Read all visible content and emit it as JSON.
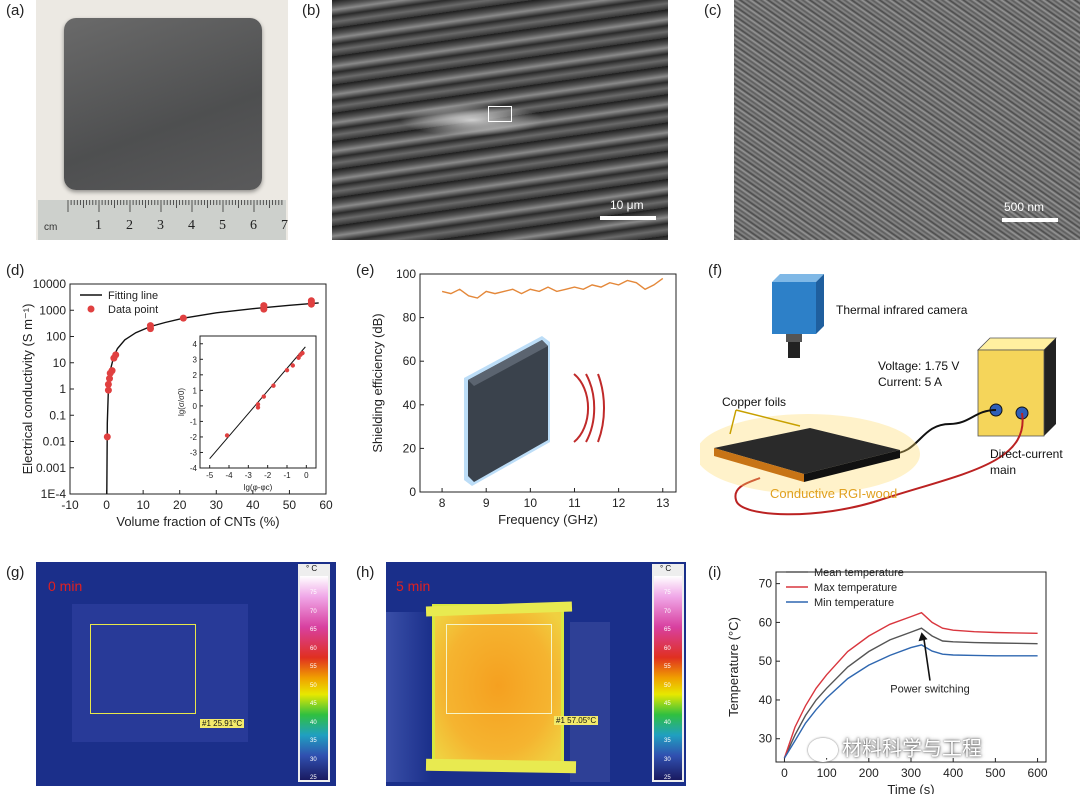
{
  "panels": {
    "a": {
      "label": "(a)",
      "ruler_unit": "cm",
      "ruler_numbers": [
        "1",
        "2",
        "3",
        "4",
        "5",
        "6",
        "7"
      ]
    },
    "b": {
      "label": "(b)",
      "scale_bar": "10 μm"
    },
    "c": {
      "label": "(c)",
      "scale_bar": "500 nm"
    },
    "d": {
      "label": "(d)"
    },
    "e": {
      "label": "(e)"
    },
    "f": {
      "label": "(f)",
      "camera_text": "Thermal infrared camera",
      "voltage_text": "Voltage: 1.75 V",
      "current_text": "Current: 5 A",
      "foils_text": "Copper foils",
      "wood_text": "Conductive RGI-wood",
      "dc_text_1": "Direct-current",
      "dc_text_2": "main"
    },
    "g": {
      "label": "(g)",
      "time": "0 min",
      "readout": "#1 25.91°C",
      "unit": "° C",
      "scale_ticks": [
        "75",
        "70",
        "65",
        "60",
        "55",
        "50",
        "45",
        "40",
        "35",
        "30",
        "25"
      ]
    },
    "h": {
      "label": "(h)",
      "time": "5 min",
      "readout": "#1 57.05°C",
      "unit": "° C",
      "scale_ticks": [
        "75",
        "70",
        "65",
        "60",
        "55",
        "50",
        "45",
        "40",
        "35",
        "30",
        "25"
      ]
    },
    "i": {
      "label": "(i)"
    }
  },
  "watermark": "材料科学与工程",
  "chart_data": [
    {
      "id": "d",
      "type": "scatter",
      "xlabel": "Volume fraction of CNTs (%)",
      "ylabel": "Electrical conductivity (S m⁻¹)",
      "xlim": [
        -10,
        60
      ],
      "ylim": [
        0.0001,
        10000
      ],
      "yscale": "log",
      "xticks": [
        "-10",
        "0",
        "10",
        "20",
        "30",
        "40",
        "50",
        "60"
      ],
      "yticks": [
        "1E-4",
        "0.001",
        "0.01",
        "0.1",
        "1",
        "10",
        "100",
        "1000",
        "10000"
      ],
      "legend": [
        "Fitting line",
        "Data point"
      ],
      "series": [
        {
          "name": "Data point",
          "points": [
            [
              0.2,
              0.015
            ],
            [
              0.5,
              0.9
            ],
            [
              0.5,
              1.5
            ],
            [
              0.8,
              2.5
            ],
            [
              1.0,
              4
            ],
            [
              1.5,
              5
            ],
            [
              2.0,
              15
            ],
            [
              2.5,
              20
            ],
            [
              12,
              200
            ],
            [
              12,
              260
            ],
            [
              21,
              500
            ],
            [
              43,
              1100
            ],
            [
              43,
              1300
            ],
            [
              43,
              1500
            ],
            [
              56,
              1700
            ],
            [
              56,
              2000
            ],
            [
              56,
              2300
            ]
          ]
        },
        {
          "name": "Fitting line",
          "points": [
            [
              0.05,
              0.0001
            ],
            [
              0.2,
              0.05
            ],
            [
              0.5,
              1
            ],
            [
              1,
              5
            ],
            [
              2,
              18
            ],
            [
              3,
              35
            ],
            [
              5,
              75
            ],
            [
              8,
              140
            ],
            [
              12,
              240
            ],
            [
              16,
              340
            ],
            [
              21,
              500
            ],
            [
              30,
              800
            ],
            [
              40,
              1150
            ],
            [
              50,
              1550
            ],
            [
              58,
              1900
            ]
          ]
        }
      ],
      "inset": {
        "xlabel": "lg(φ-φc)",
        "ylabel": "lg(σ/σ0)",
        "xlim": [
          -5.5,
          0.5
        ],
        "ylim": [
          -4,
          4.5
        ],
        "xticks": [
          "-5",
          "-4",
          "-3",
          "-2",
          "-1",
          "0"
        ],
        "yticks": [
          "-4",
          "-3",
          "-2",
          "-1",
          "0",
          "1",
          "2",
          "3",
          "4"
        ],
        "points": [
          [
            -4.1,
            -1.9
          ],
          [
            -2.5,
            0.1
          ],
          [
            -2.5,
            -0.1
          ],
          [
            -2.2,
            0.6
          ],
          [
            -1.7,
            1.3
          ],
          [
            -1.0,
            2.3
          ],
          [
            -0.7,
            2.6
          ],
          [
            -0.4,
            3.1
          ],
          [
            -0.3,
            3.3
          ],
          [
            -0.2,
            3.4
          ]
        ],
        "line": [
          [
            -5,
            -3.4
          ],
          [
            -0.05,
            3.8
          ]
        ]
      }
    },
    {
      "id": "e",
      "type": "line",
      "xlabel": "Frequency (GHz)",
      "ylabel": "Shielding efficiency (dB)",
      "xlim": [
        7.5,
        13.3
      ],
      "ylim": [
        0,
        100
      ],
      "xticks": [
        "8",
        "9",
        "10",
        "11",
        "12",
        "13"
      ],
      "yticks": [
        "0",
        "20",
        "40",
        "60",
        "80",
        "100"
      ],
      "series": [
        {
          "name": "",
          "x": [
            8.0,
            8.2,
            8.4,
            8.6,
            8.8,
            9.0,
            9.2,
            9.4,
            9.6,
            9.8,
            10.0,
            10.2,
            10.4,
            10.6,
            10.8,
            11.0,
            11.2,
            11.4,
            11.6,
            11.8,
            12.0,
            12.2,
            12.4,
            12.6,
            12.8,
            13.0
          ],
          "y": [
            92,
            91,
            93,
            90,
            89,
            92,
            91,
            92,
            93,
            91,
            93,
            92,
            94,
            92,
            93,
            94,
            93,
            95,
            94,
            96,
            95,
            97,
            96,
            93,
            95,
            98
          ]
        }
      ]
    },
    {
      "id": "i",
      "type": "line",
      "xlabel": "Time (s)",
      "ylabel": "Temperature (°C)",
      "xlim": [
        -20,
        620
      ],
      "ylim": [
        24,
        73
      ],
      "xticks": [
        "0",
        "100",
        "200",
        "300",
        "400",
        "500",
        "600"
      ],
      "yticks": [
        "30",
        "40",
        "50",
        "60",
        "70"
      ],
      "annotation": "Power switching",
      "legend": [
        "Mean temperature",
        "Max temperature",
        "Min temperature"
      ],
      "series": [
        {
          "name": "Mean temperature",
          "color": "#555555",
          "x": [
            0,
            25,
            50,
            75,
            100,
            150,
            200,
            250,
            300,
            325,
            350,
            375,
            400,
            450,
            500,
            550,
            600
          ],
          "y": [
            25,
            31,
            36,
            40,
            43,
            48.5,
            52.5,
            55.5,
            57.5,
            58.5,
            56.5,
            55.2,
            55,
            54.8,
            54.7,
            54.6,
            54.5
          ]
        },
        {
          "name": "Max temperature",
          "color": "#d9363e",
          "x": [
            0,
            25,
            50,
            75,
            100,
            150,
            200,
            250,
            300,
            325,
            350,
            375,
            400,
            450,
            500,
            550,
            600
          ],
          "y": [
            25,
            33,
            38.5,
            43,
            46.5,
            52.5,
            56.5,
            59.5,
            61.5,
            62.5,
            60,
            58.5,
            58,
            57.6,
            57.4,
            57.3,
            57.2
          ]
        },
        {
          "name": "Min temperature",
          "color": "#2f67b0",
          "x": [
            0,
            25,
            50,
            75,
            100,
            150,
            200,
            250,
            300,
            325,
            350,
            375,
            400,
            450,
            500,
            550,
            600
          ],
          "y": [
            25,
            29.5,
            34,
            37.5,
            40.5,
            45.5,
            49,
            51.5,
            53.5,
            54.2,
            52.6,
            51.8,
            51.6,
            51.5,
            51.4,
            51.4,
            51.4
          ]
        }
      ]
    }
  ]
}
